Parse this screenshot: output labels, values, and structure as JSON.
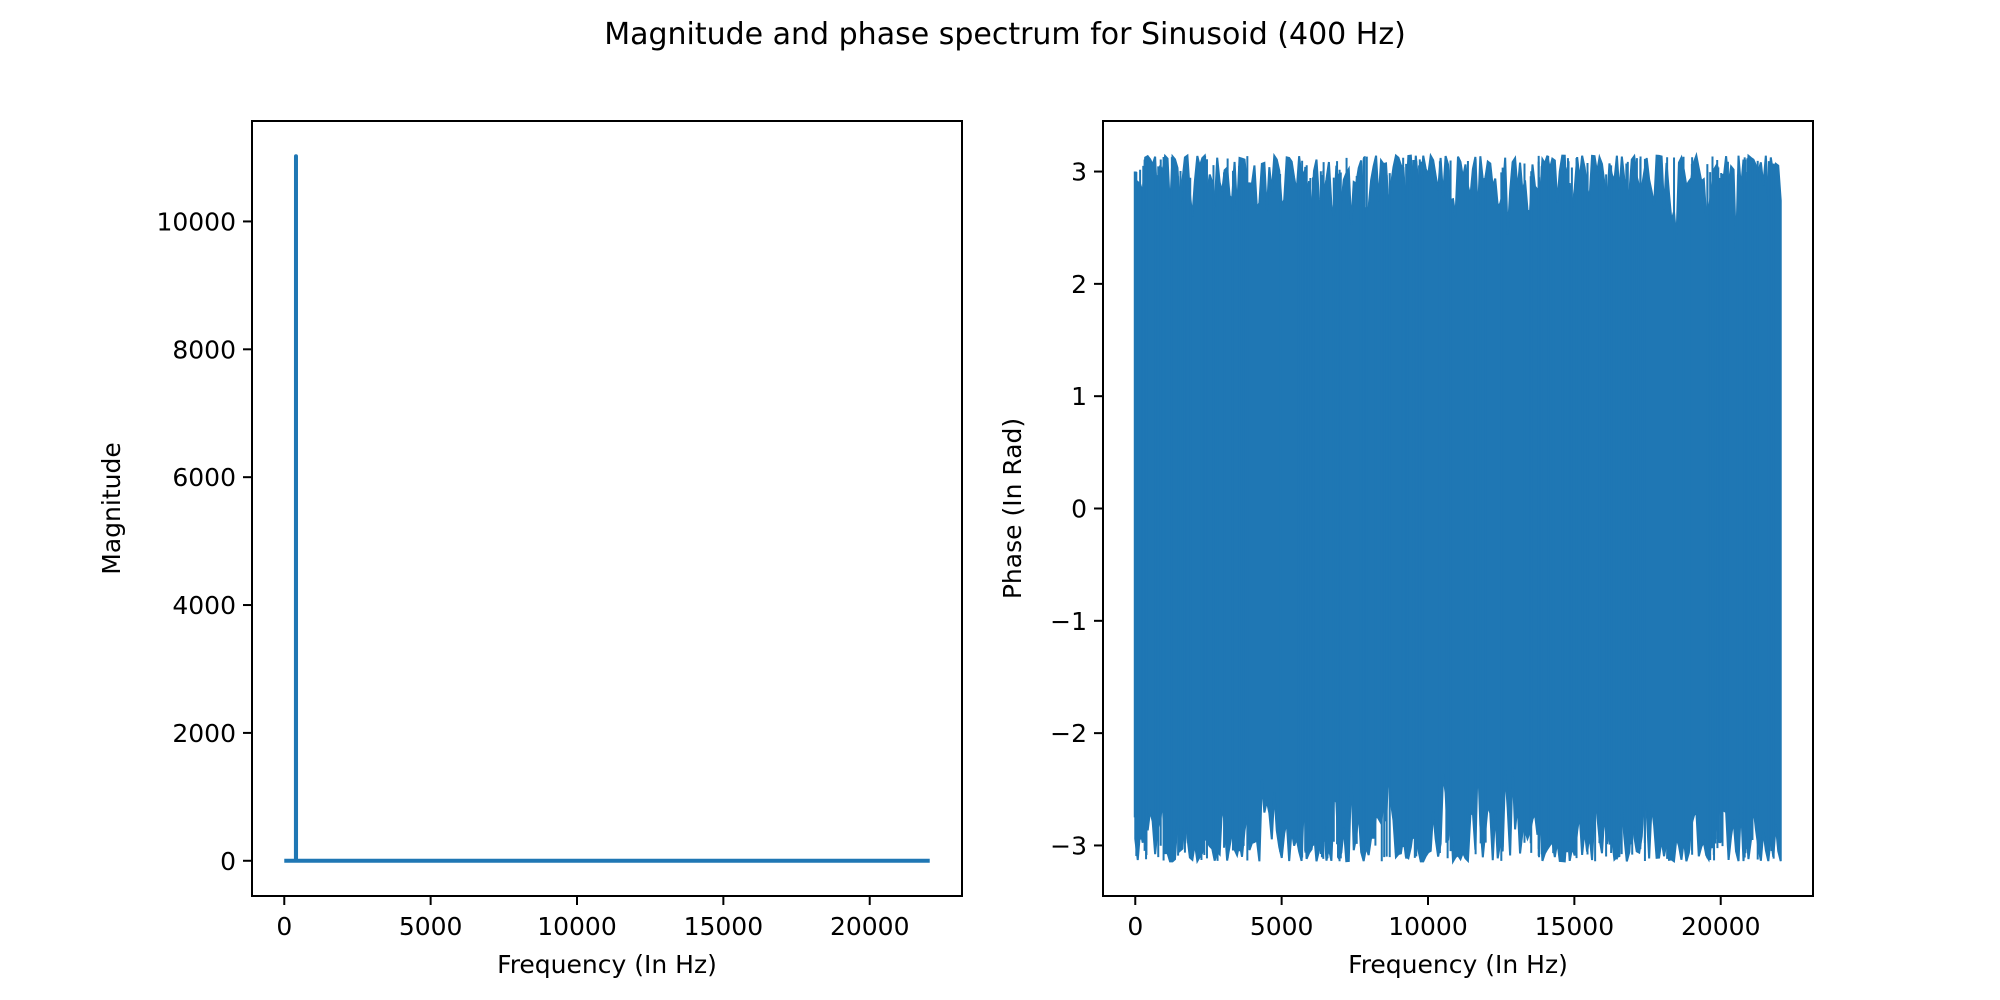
{
  "figure": {
    "title": "Magnitude and phase spectrum for Sinusoid (400 Hz)"
  },
  "colors": {
    "series": "#1f77b4",
    "axes": "#000000",
    "background": "#ffffff"
  },
  "chart_data": [
    {
      "type": "line",
      "title": "",
      "xlabel": "Frequency (In Hz)",
      "ylabel": "Magnitude",
      "xlim": [
        -1102.5,
        23152.5
      ],
      "ylim": [
        -551,
        11571
      ],
      "xticks": [
        0,
        5000,
        10000,
        15000,
        20000
      ],
      "xtick_labels": [
        "0",
        "5000",
        "10000",
        "15000",
        "20000"
      ],
      "yticks": [
        0,
        2000,
        4000,
        6000,
        8000,
        10000
      ],
      "ytick_labels": [
        "0",
        "2000",
        "4000",
        "6000",
        "8000",
        "10000"
      ],
      "grid": false,
      "series": [
        {
          "x": [
            0,
            398,
            400,
            402,
            22050
          ],
          "y": [
            0,
            0,
            11020,
            0,
            0
          ]
        }
      ]
    },
    {
      "type": "line",
      "title": "",
      "xlabel": "Frequency (In Hz)",
      "ylabel": "Phase (In Rad)",
      "xlim": [
        -1102.5,
        23152.5
      ],
      "ylim": [
        -3.45,
        3.45
      ],
      "xticks": [
        0,
        5000,
        10000,
        15000,
        20000
      ],
      "xtick_labels": [
        "0",
        "5000",
        "10000",
        "15000",
        "20000"
      ],
      "yticks": [
        -3,
        -2,
        -1,
        0,
        1,
        2,
        3
      ],
      "ytick_labels": [
        "−3",
        "−2",
        "−1",
        "0",
        "1",
        "2",
        "3"
      ],
      "grid": false,
      "series": [
        {
          "description_range": [
            0,
            22050
          ],
          "y_range": [
            -3.14159,
            3.14159
          ]
        }
      ]
    }
  ]
}
